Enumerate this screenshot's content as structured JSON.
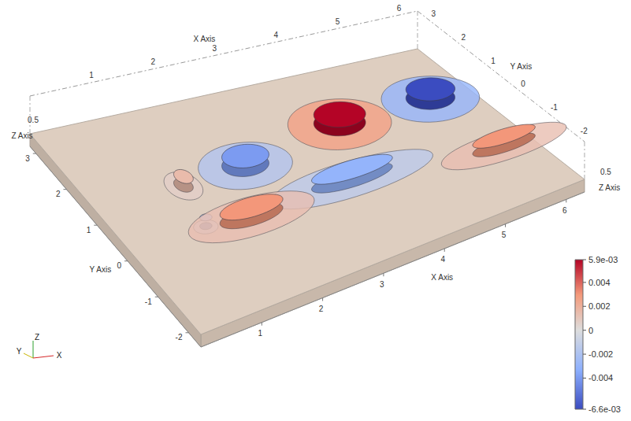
{
  "chart_data": {
    "type": "isosurface",
    "x_label": "X Axis",
    "y_label": "Y Axis",
    "z_label": "Z Axis",
    "xlim": [
      0,
      6.3
    ],
    "ylim": [
      -2.4,
      3.2
    ],
    "zlim": [
      0,
      0.5
    ],
    "xticks": [
      1,
      2,
      3,
      4,
      5,
      6
    ],
    "yticks": [
      -2,
      -1,
      0,
      1,
      2,
      3
    ],
    "zticks": [
      0.5
    ],
    "triad_labels": [
      "X",
      "Y",
      "Z"
    ],
    "colorbar": {
      "range": [
        -0.0066,
        0.0059
      ],
      "ticks": [
        {
          "value": -0.0066,
          "label": "-6.6e-03"
        },
        -0.004,
        -0.002,
        0,
        0.002,
        0.004,
        {
          "value": 0.0059,
          "label": "5.9e-03"
        }
      ]
    },
    "blobs": [
      {
        "x": 4.16,
        "y": 1.41,
        "rx": 0.75,
        "ry": 0.8,
        "value": 0.0059
      },
      {
        "x": 5.64,
        "y": 1.41,
        "rx": 0.7,
        "ry": 0.8,
        "value": -0.0066
      },
      {
        "x": 2.43,
        "y": 1.02,
        "rx": 0.7,
        "ry": 0.65,
        "value": -0.004
      },
      {
        "x": 3.59,
        "y": -0.16,
        "rx": 1.3,
        "ry": 0.5,
        "value": -0.003
      },
      {
        "x": 1.89,
        "y": -0.27,
        "rx": 1.0,
        "ry": 0.5,
        "value": 0.003
      },
      {
        "x": 5.83,
        "y": -0.66,
        "rx": 1.0,
        "ry": 0.45,
        "value": 0.003
      },
      {
        "x": 1.39,
        "y": 0.96,
        "rx": 0.25,
        "ry": 0.4,
        "value": 0.0015
      },
      {
        "x": 1.2,
        "y": -0.16,
        "rx": 0.18,
        "ry": 0.18,
        "value": -0.0015
      }
    ]
  }
}
